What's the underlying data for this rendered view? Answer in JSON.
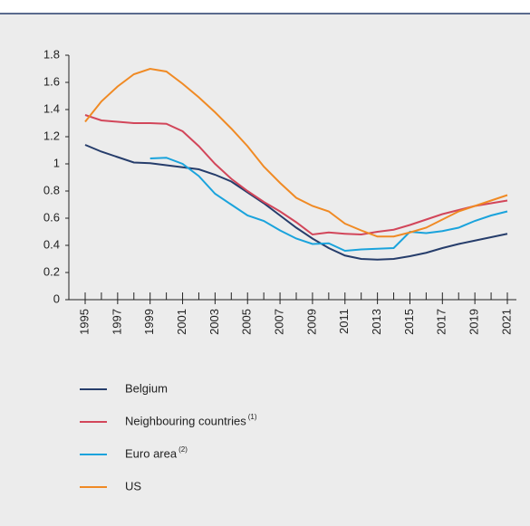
{
  "chart_data": {
    "type": "line",
    "x": [
      1995,
      1996,
      1997,
      1998,
      1999,
      2000,
      2001,
      2002,
      2003,
      2004,
      2005,
      2006,
      2007,
      2008,
      2009,
      2010,
      2011,
      2012,
      2013,
      2014,
      2015,
      2016,
      2017,
      2018,
      2019,
      2020,
      2021
    ],
    "xlim": [
      1995,
      2021
    ],
    "xticks": [
      1995,
      1997,
      1999,
      2001,
      2003,
      2005,
      2007,
      2009,
      2011,
      2013,
      2015,
      2017,
      2019,
      2021
    ],
    "ylim": [
      0,
      1.8
    ],
    "yticks": [
      0,
      0.2,
      0.4,
      0.6,
      0.8,
      1,
      1.2,
      1.4,
      1.6,
      1.8
    ],
    "series": [
      {
        "name": "Belgium",
        "color": "#263d6b",
        "values": [
          1.14,
          1.09,
          1.05,
          1.01,
          1.005,
          0.99,
          0.975,
          0.96,
          0.92,
          0.87,
          0.79,
          0.71,
          0.62,
          0.53,
          0.45,
          0.38,
          0.325,
          0.3,
          0.295,
          0.3,
          0.32,
          0.345,
          0.38,
          0.41,
          0.435,
          0.46,
          0.485
        ]
      },
      {
        "name": "Neighbouring countries",
        "note": "(1)",
        "color": "#d2465a",
        "values": [
          1.36,
          1.32,
          1.31,
          1.3,
          1.3,
          1.295,
          1.24,
          1.13,
          1.0,
          0.89,
          0.8,
          0.72,
          0.65,
          0.57,
          0.48,
          0.495,
          0.485,
          0.48,
          0.5,
          0.515,
          0.55,
          0.59,
          0.63,
          0.66,
          0.69,
          0.71,
          0.73
        ]
      },
      {
        "name": "Euro area",
        "note": "(2)",
        "color": "#1aa3dc",
        "values": [
          null,
          null,
          null,
          null,
          1.04,
          1.045,
          1.0,
          0.91,
          0.78,
          0.7,
          0.62,
          0.58,
          0.51,
          0.45,
          0.41,
          0.415,
          0.36,
          0.37,
          0.375,
          0.38,
          0.5,
          0.49,
          0.505,
          0.53,
          0.58,
          0.62,
          0.65
        ]
      },
      {
        "name": "US",
        "color": "#f08a24",
        "values": [
          1.31,
          1.46,
          1.57,
          1.66,
          1.7,
          1.68,
          1.59,
          1.49,
          1.38,
          1.26,
          1.13,
          0.98,
          0.86,
          0.75,
          0.69,
          0.65,
          0.56,
          0.51,
          0.465,
          0.465,
          0.495,
          0.53,
          0.59,
          0.65,
          0.69,
          0.73,
          0.77
        ]
      }
    ]
  }
}
